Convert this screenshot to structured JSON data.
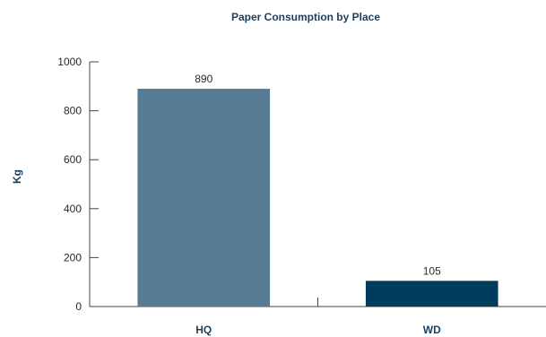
{
  "chart_data": {
    "type": "bar",
    "title": "Paper Consumption by Place",
    "ylabel": "Kg",
    "xlabel": "",
    "categories": [
      "HQ",
      "WD"
    ],
    "values": [
      890,
      105
    ],
    "data_labels": [
      "890",
      "105"
    ],
    "bar_colors": [
      "#587c95",
      "#003d5c"
    ],
    "ylim": [
      0,
      1000
    ],
    "yticks": [
      0,
      200,
      400,
      600,
      800,
      1000
    ],
    "grid": false
  }
}
